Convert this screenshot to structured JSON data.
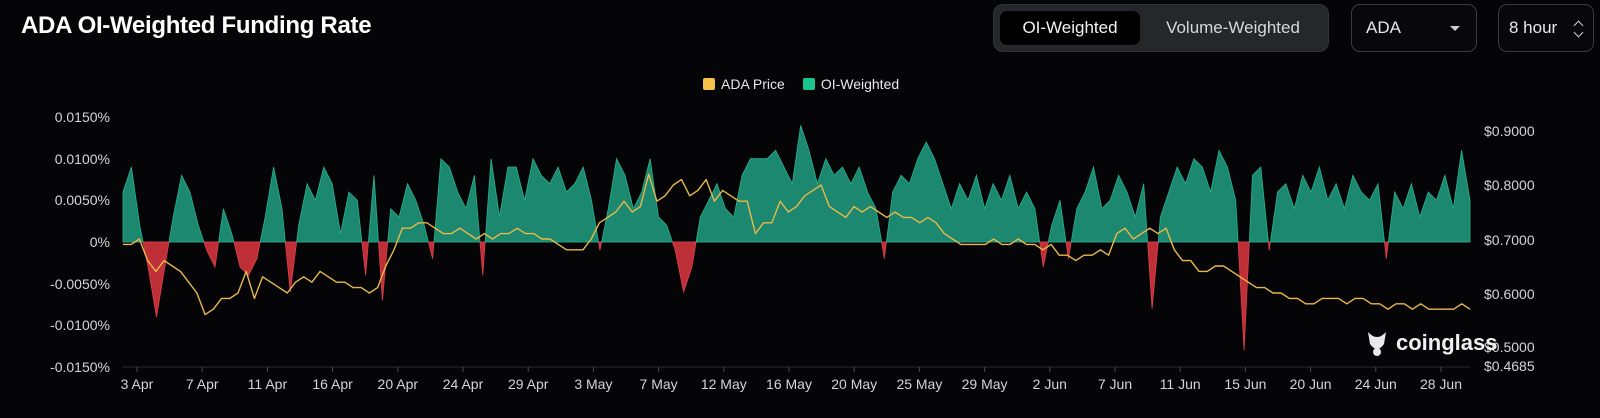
{
  "header": {
    "title": "ADA OI-Weighted Funding Rate",
    "tabs": [
      {
        "label": "OI-Weighted",
        "active": true
      },
      {
        "label": "Volume-Weighted",
        "active": false
      }
    ],
    "coin_select": "ADA",
    "interval_select": "8 hour"
  },
  "watermark": "coinglass",
  "colors": {
    "positive": "#1f9b7d",
    "negative": "#c8313a",
    "price": "#e8b84a",
    "background": "#050508"
  },
  "chart_data": {
    "type": "area",
    "legend": [
      {
        "name": "ADA Price",
        "color": "#f5c14b"
      },
      {
        "name": "OI-Weighted",
        "color": "#19c58d"
      }
    ],
    "categories": [
      "3 Apr",
      "7 Apr",
      "11 Apr",
      "16 Apr",
      "20 Apr",
      "24 Apr",
      "29 Apr",
      "3 May",
      "7 May",
      "12 May",
      "16 May",
      "20 May",
      "25 May",
      "29 May",
      "2 Jun",
      "7 Jun",
      "11 Jun",
      "15 Jun",
      "20 Jun",
      "24 Jun",
      "28 Jun"
    ],
    "y_left": {
      "ticks": [
        "0.0150%",
        "0.0100%",
        "0.0050%",
        "0%",
        "-0.0050%",
        "-0.0100%",
        "-0.0150%"
      ],
      "range": [
        -0.015,
        0.015
      ]
    },
    "y_right": {
      "ticks": [
        "$0.9000",
        "$0.8000",
        "$0.7000",
        "$0.6000",
        "$0.5000",
        "$0.4685"
      ],
      "range": [
        0.4685,
        0.93
      ]
    },
    "funding_rate": [
      0.006,
      0.009,
      0.002,
      -0.003,
      -0.009,
      -0.003,
      0.003,
      0.008,
      0.006,
      0.002,
      -0.001,
      -0.003,
      0.004,
      0.001,
      -0.003,
      -0.004,
      -0.002,
      0.003,
      0.009,
      0.004,
      -0.006,
      0.002,
      0.007,
      0.005,
      0.009,
      0.007,
      0.001,
      0.006,
      0.005,
      -0.004,
      0.008,
      -0.007,
      0.004,
      0.003,
      0.007,
      0.005,
      0.002,
      -0.002,
      0.01,
      0.009,
      0.006,
      0.004,
      0.008,
      -0.004,
      0.01,
      0.003,
      0.009,
      0.009,
      0.005,
      0.01,
      0.008,
      0.007,
      0.009,
      0.006,
      0.007,
      0.009,
      0.005,
      -0.001,
      0.004,
      0.01,
      0.008,
      0.004,
      0.006,
      0.01,
      0.003,
      0.002,
      -0.001,
      -0.006,
      -0.003,
      0.003,
      0.005,
      0.007,
      0.004,
      0.003,
      0.008,
      0.01,
      0.01,
      0.01,
      0.011,
      0.009,
      0.007,
      0.014,
      0.011,
      0.007,
      0.01,
      0.008,
      0.009,
      0.007,
      0.009,
      0.006,
      0.004,
      -0.002,
      0.006,
      0.008,
      0.007,
      0.01,
      0.012,
      0.01,
      0.007,
      0.004,
      0.007,
      0.005,
      0.008,
      0.004,
      0.007,
      0.005,
      0.008,
      0.004,
      0.006,
      0.004,
      -0.003,
      0.002,
      0.005,
      -0.002,
      0.004,
      0.006,
      0.009,
      0.004,
      0.005,
      0.008,
      0.006,
      0.003,
      0.007,
      -0.008,
      0.003,
      0.006,
      0.009,
      0.007,
      0.01,
      0.009,
      0.006,
      0.011,
      0.009,
      0.005,
      -0.013,
      0.008,
      0.009,
      -0.001,
      0.006,
      0.007,
      0.004,
      0.008,
      0.006,
      0.009,
      0.005,
      0.007,
      0.004,
      0.008,
      0.006,
      0.005,
      0.007,
      -0.002,
      0.006,
      0.004,
      0.007,
      0.003,
      0.006,
      0.005,
      0.008,
      0.004,
      0.011,
      0.005
    ],
    "ada_price": [
      0.69,
      0.69,
      0.7,
      0.66,
      0.64,
      0.66,
      0.65,
      0.64,
      0.62,
      0.6,
      0.56,
      0.57,
      0.59,
      0.59,
      0.6,
      0.64,
      0.59,
      0.63,
      0.62,
      0.61,
      0.6,
      0.62,
      0.63,
      0.62,
      0.64,
      0.63,
      0.62,
      0.62,
      0.61,
      0.61,
      0.6,
      0.61,
      0.65,
      0.68,
      0.72,
      0.72,
      0.73,
      0.73,
      0.72,
      0.71,
      0.71,
      0.72,
      0.71,
      0.7,
      0.71,
      0.7,
      0.71,
      0.71,
      0.72,
      0.71,
      0.71,
      0.7,
      0.7,
      0.69,
      0.68,
      0.68,
      0.68,
      0.7,
      0.73,
      0.74,
      0.75,
      0.77,
      0.75,
      0.76,
      0.82,
      0.77,
      0.78,
      0.8,
      0.81,
      0.78,
      0.79,
      0.81,
      0.77,
      0.79,
      0.78,
      0.77,
      0.77,
      0.71,
      0.73,
      0.73,
      0.77,
      0.75,
      0.76,
      0.78,
      0.79,
      0.8,
      0.76,
      0.75,
      0.74,
      0.76,
      0.75,
      0.76,
      0.75,
      0.74,
      0.75,
      0.74,
      0.74,
      0.73,
      0.74,
      0.73,
      0.71,
      0.7,
      0.69,
      0.69,
      0.69,
      0.69,
      0.7,
      0.69,
      0.69,
      0.7,
      0.69,
      0.69,
      0.68,
      0.69,
      0.67,
      0.67,
      0.66,
      0.67,
      0.67,
      0.68,
      0.67,
      0.71,
      0.72,
      0.7,
      0.71,
      0.72,
      0.71,
      0.72,
      0.68,
      0.66,
      0.66,
      0.64,
      0.64,
      0.65,
      0.65,
      0.64,
      0.63,
      0.62,
      0.61,
      0.61,
      0.6,
      0.6,
      0.59,
      0.59,
      0.58,
      0.58,
      0.59,
      0.59,
      0.59,
      0.58,
      0.59,
      0.59,
      0.58,
      0.58,
      0.57,
      0.58,
      0.58,
      0.57,
      0.58,
      0.57,
      0.57,
      0.57,
      0.57,
      0.58,
      0.57
    ]
  }
}
